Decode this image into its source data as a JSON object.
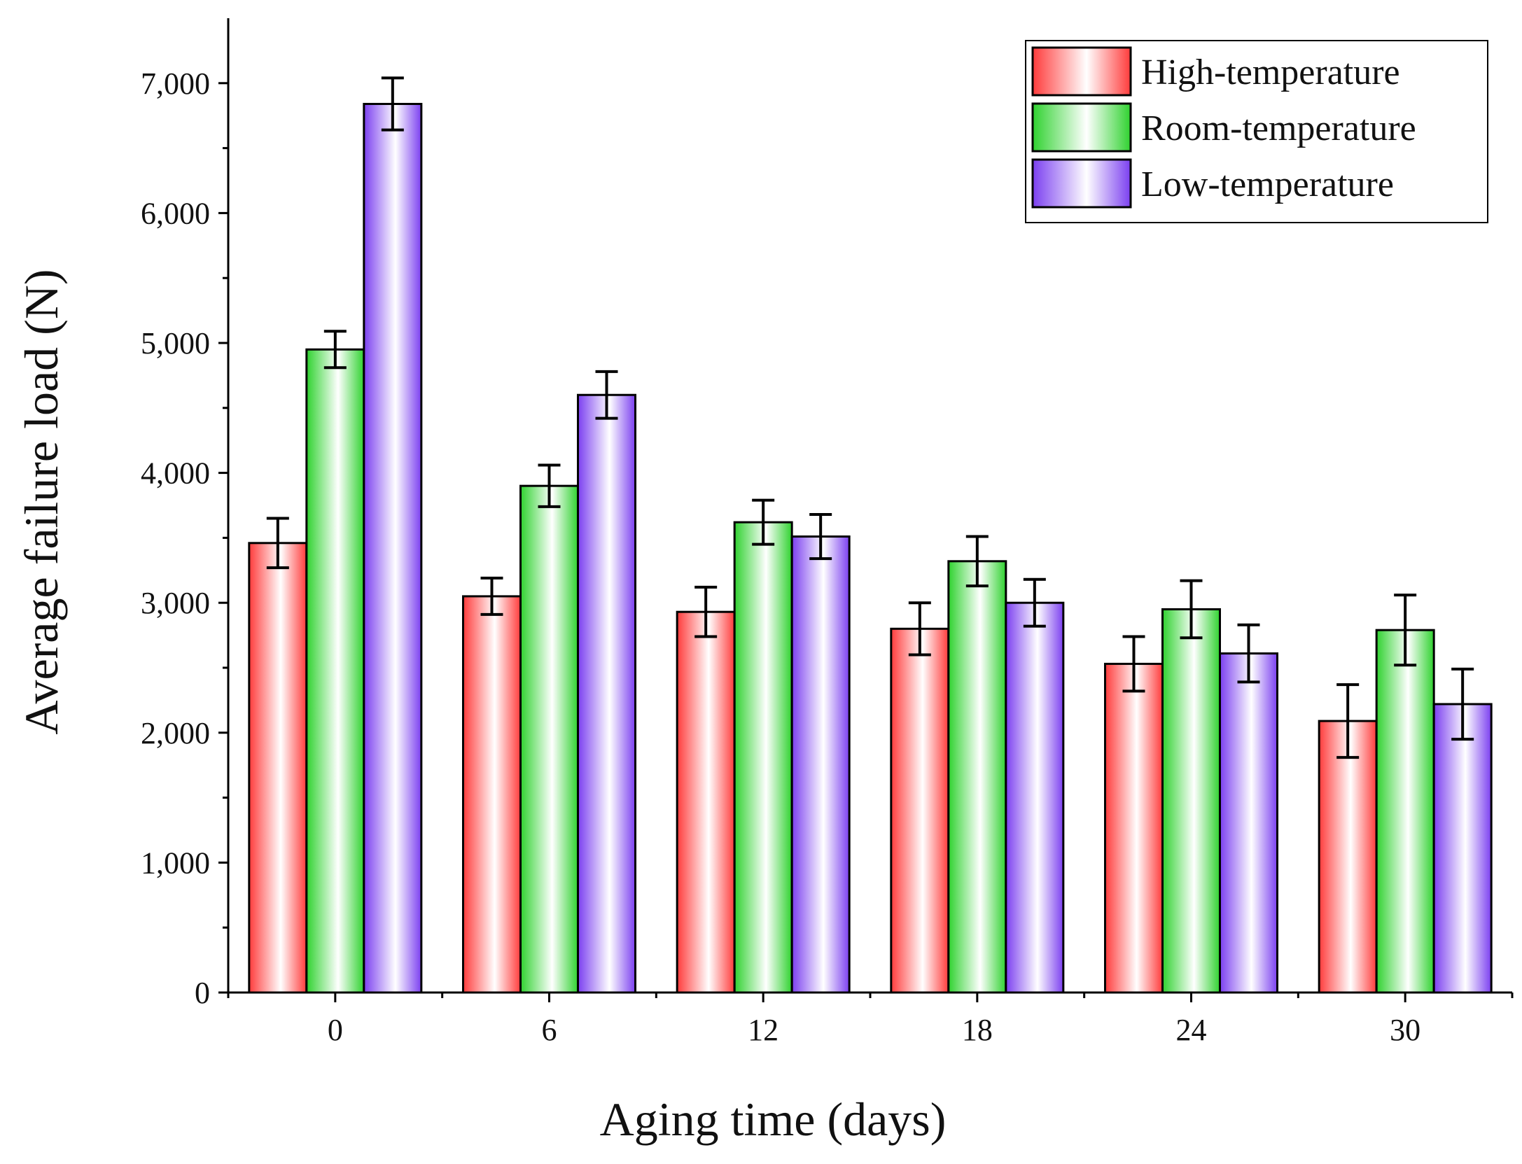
{
  "chart_data": {
    "type": "bar",
    "xlabel": "Aging time (days)",
    "ylabel": "Average failure load (N)",
    "categories": [
      "0",
      "6",
      "12",
      "18",
      "24",
      "30"
    ],
    "ylim": [
      0,
      7500
    ],
    "yticks": [
      0,
      1000,
      2000,
      3000,
      4000,
      5000,
      6000,
      7000
    ],
    "ytick_labels": [
      "0",
      "1,000",
      "2,000",
      "3,000",
      "4,000",
      "5,000",
      "6,000",
      "7,000"
    ],
    "legend_position": "top-right",
    "grid": false,
    "series": [
      {
        "name": "High-temperature",
        "color": "#ff3b3b",
        "values": [
          3460,
          3050,
          2930,
          2800,
          2530,
          2090
        ],
        "errors": [
          190,
          140,
          190,
          200,
          210,
          280
        ]
      },
      {
        "name": "Room-temperature",
        "color": "#2fd22f",
        "values": [
          4950,
          3900,
          3620,
          3320,
          2950,
          2790
        ],
        "errors": [
          140,
          160,
          170,
          190,
          220,
          270
        ]
      },
      {
        "name": "Low-temperature",
        "color": "#7b3ff0",
        "values": [
          6840,
          4600,
          3510,
          3000,
          2610,
          2220
        ],
        "errors": [
          200,
          180,
          170,
          180,
          220,
          270
        ]
      }
    ]
  }
}
